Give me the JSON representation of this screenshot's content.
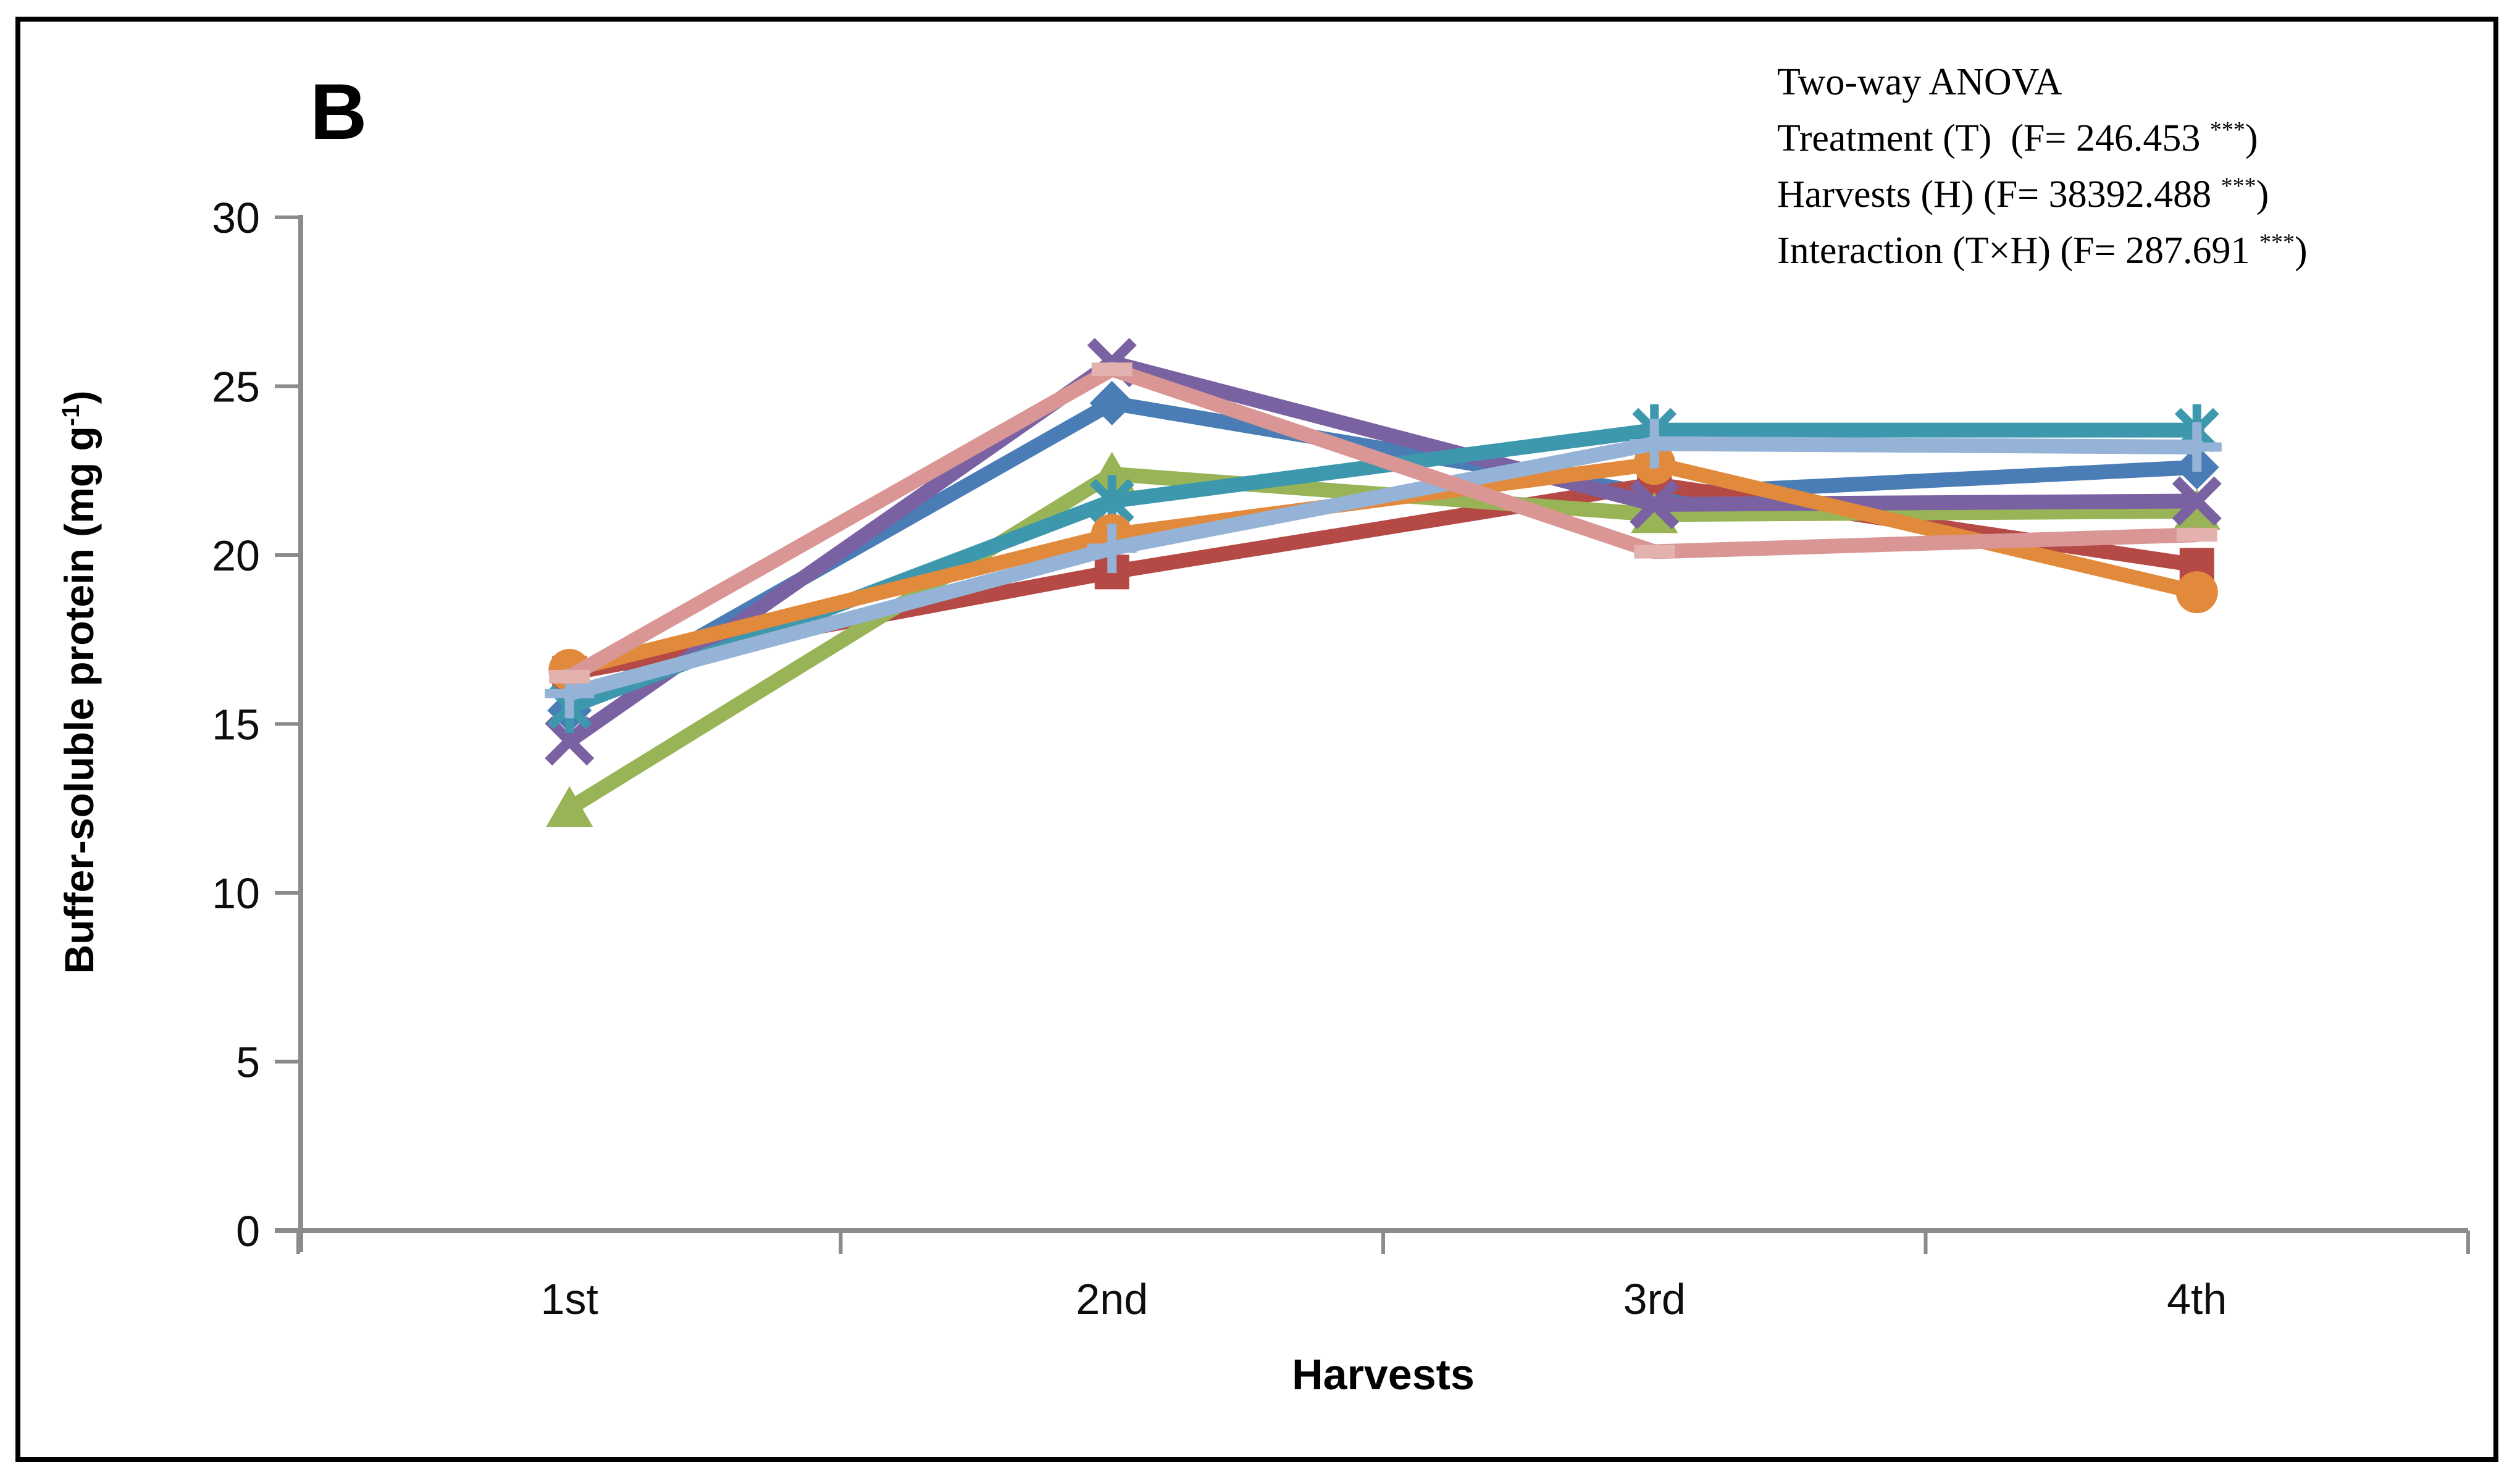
{
  "panel_label": "B",
  "anova": {
    "title": "Two-way ANOVA",
    "rows": [
      {
        "text": "Treatment (T)  (F= 246.453 ",
        "stars": "***",
        "close": ")"
      },
      {
        "text": "Harvests (H) (F= 38392.488 ",
        "stars": "***",
        "close": ")"
      },
      {
        "text": "Interaction (T×H) (F= 287.691 ",
        "stars": "***",
        "close": ")"
      }
    ]
  },
  "chart_data": {
    "type": "line",
    "title": "",
    "xlabel": "Harvests",
    "ylabel_parts": {
      "main": "Buffer-soluble protein (mg g",
      "sup": "-1",
      "close": ")"
    },
    "categories": [
      "1st",
      "2nd",
      "3rd",
      "4th"
    ],
    "ylim": [
      0,
      30
    ],
    "yticks": [
      0,
      5,
      10,
      15,
      20,
      25,
      30
    ],
    "grid": false,
    "legend": "none",
    "axis_color": "#8B8B8B",
    "series": [
      {
        "name": "blue-diamond",
        "marker": "diamond",
        "color": "#4A7CB5",
        "values": [
          15.4,
          24.5,
          21.8,
          22.6
        ]
      },
      {
        "name": "red-square",
        "marker": "square",
        "color": "#B54945",
        "values": [
          16.5,
          19.5,
          22.1,
          19.7
        ]
      },
      {
        "name": "green-triangle",
        "marker": "triangle",
        "color": "#98B456",
        "values": [
          12.5,
          22.4,
          21.2,
          21.3
        ]
      },
      {
        "name": "purple-x",
        "marker": "x",
        "color": "#7A61A2",
        "values": [
          14.5,
          25.7,
          21.5,
          21.6
        ]
      },
      {
        "name": "teal-asterisk",
        "marker": "asterisk",
        "color": "#3D98AE",
        "values": [
          15.5,
          21.6,
          23.7,
          23.7
        ]
      },
      {
        "name": "orange-circle",
        "marker": "circle",
        "color": "#E28A3C",
        "values": [
          16.6,
          20.6,
          22.7,
          18.9
        ]
      },
      {
        "name": "light-blue-plus",
        "marker": "plus",
        "color": "#95B3D7",
        "values": [
          15.9,
          20.2,
          23.3,
          23.2
        ]
      },
      {
        "name": "pink-dash",
        "marker": "dash",
        "color": "#D99694",
        "marker_color": "#E3B1AE",
        "values": [
          16.4,
          25.5,
          20.1,
          20.6
        ]
      }
    ]
  }
}
